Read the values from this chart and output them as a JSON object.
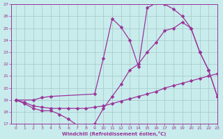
{
  "xlabel": "Windchill (Refroidissement éolien,°C)",
  "bg_color": "#c8ecec",
  "line_color": "#993399",
  "grid_color": "#aacccc",
  "xlim": [
    -0.5,
    23
  ],
  "ylim": [
    17,
    27
  ],
  "xticks": [
    0,
    1,
    2,
    3,
    4,
    5,
    6,
    7,
    8,
    9,
    10,
    11,
    12,
    13,
    14,
    15,
    16,
    17,
    18,
    19,
    20,
    21,
    22,
    23
  ],
  "yticks": [
    17,
    18,
    19,
    20,
    21,
    22,
    23,
    24,
    25,
    26,
    27
  ],
  "line1_x": [
    0,
    1,
    2,
    3,
    4,
    5,
    6,
    7,
    8,
    9,
    10,
    11,
    12,
    13,
    14,
    15,
    16,
    17,
    18,
    19,
    20,
    21,
    22,
    23
  ],
  "line1_y": [
    19,
    18.7,
    18.3,
    18.1,
    18.1,
    17.8,
    17.4,
    16.9,
    16.9,
    17.0,
    18.3,
    19.3,
    20.3,
    21.5,
    22.0,
    23.0,
    23.8,
    24.8,
    25.0,
    25.5,
    25.0,
    23.0,
    21.5,
    19.3
  ],
  "line2_x": [
    0,
    1,
    2,
    3,
    4,
    5,
    6,
    7,
    8,
    9,
    10,
    11,
    12,
    13,
    14,
    15,
    16,
    17,
    18,
    19,
    20,
    21,
    22,
    23
  ],
  "line2_y": [
    19,
    18.8,
    18.5,
    18.4,
    18.3,
    18.3,
    18.3,
    18.3,
    18.3,
    18.4,
    18.5,
    18.7,
    18.9,
    19.1,
    19.3,
    19.5,
    19.7,
    20.0,
    20.2,
    20.4,
    20.6,
    20.8,
    21.0,
    21.2
  ],
  "line3_x": [
    0,
    2,
    3,
    4,
    9,
    10,
    11,
    12,
    13,
    14,
    15,
    16,
    17,
    18,
    19,
    20,
    21,
    22,
    23
  ],
  "line3_y": [
    19,
    19.0,
    19.2,
    19.3,
    19.5,
    22.5,
    25.8,
    25.1,
    24.0,
    21.8,
    26.7,
    27.1,
    27.0,
    26.6,
    26.0,
    25.0,
    23.0,
    21.5,
    19.3
  ]
}
